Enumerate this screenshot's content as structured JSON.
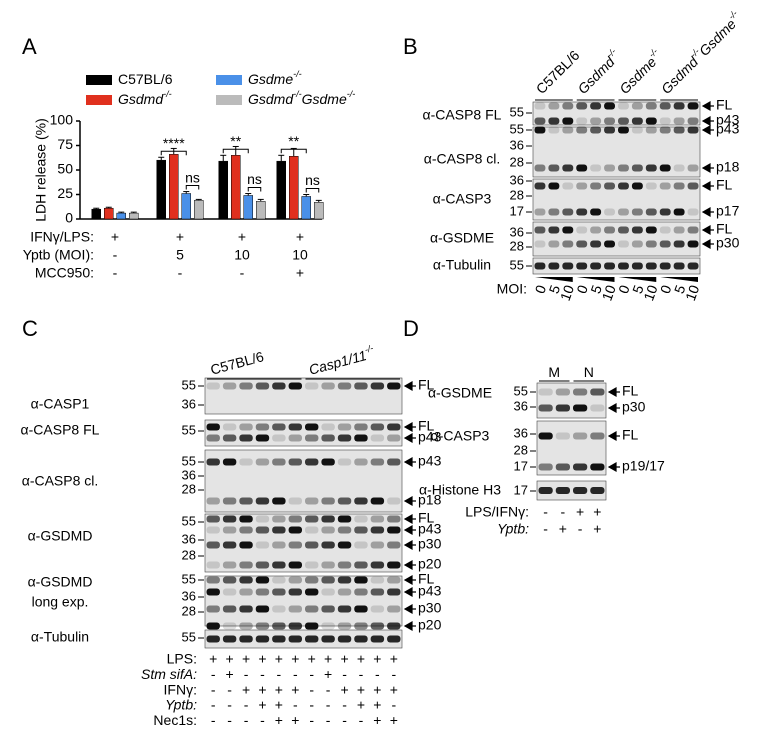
{
  "chart_data": {
    "type": "bar",
    "panel": "A",
    "ylabel": "LDH release (%)",
    "categories": [
      null,
      null,
      null,
      null
    ],
    "series": [
      {
        "name": "C57BL/6",
        "color": "#000000",
        "values": [
          10,
          60,
          59,
          59
        ],
        "errors": [
          1,
          3,
          6,
          6
        ]
      },
      {
        "name": "Gsdmd-/-",
        "color": "#e0301e",
        "values": [
          11,
          66,
          65,
          64
        ],
        "errors": [
          1,
          6,
          9,
          8
        ]
      },
      {
        "name": "Gsdme-/-",
        "color": "#4a90e8",
        "values": [
          6,
          26,
          24,
          23
        ],
        "errors": [
          1,
          2,
          2,
          2
        ]
      },
      {
        "name": "Gsdmd-/-Gsdme-/-",
        "color": "#bbbbbb",
        "values": [
          6,
          19,
          18,
          17
        ],
        "errors": [
          1,
          1,
          2,
          2
        ]
      }
    ],
    "ylim": [
      0,
      100
    ],
    "yticks": [
      0,
      25,
      50,
      75,
      100
    ],
    "grid": false,
    "significance": [
      [
        "****",
        "ns"
      ],
      [
        "**",
        "ns"
      ],
      [
        "**",
        "ns"
      ]
    ],
    "conditions": [
      {
        "label": "IFNγ/LPS:",
        "values": [
          "+",
          "+",
          "+",
          "+"
        ]
      },
      {
        "label": "Yptb (MOI):",
        "values": [
          "-",
          "5",
          "10",
          "10"
        ]
      },
      {
        "label": "MCC950:",
        "values": [
          "-",
          "-",
          "-",
          "+"
        ]
      }
    ]
  },
  "panel_b": {
    "label": "B",
    "groups": [
      "C57BL/6",
      "Gsdmd-/-",
      "Gsdme-/-",
      "Gsdmd-/-Gsdme-/-"
    ],
    "rows": [
      {
        "label": [
          "α-CASP8 FL"
        ],
        "markers": [
          55
        ],
        "bands": [
          "FL",
          "p43"
        ]
      },
      {
        "label": [
          "α-CASP8 cl."
        ],
        "markers": [
          55,
          36,
          28
        ],
        "bands": [
          "p43",
          "p18"
        ]
      },
      {
        "label": [
          "α-CASP3"
        ],
        "markers": [
          36,
          28,
          17
        ],
        "bands": [
          "FL",
          "p17"
        ]
      },
      {
        "label": [
          "α-GSDME"
        ],
        "markers": [
          36,
          28
        ],
        "bands": [
          "FL",
          "p30"
        ]
      },
      {
        "label": [
          "α-Tubulin"
        ],
        "markers": [
          55
        ],
        "bands": []
      }
    ],
    "lanes_label": "MOI:",
    "lanes": [
      0,
      5,
      10,
      0,
      5,
      10,
      0,
      5,
      10,
      0,
      5,
      10
    ]
  },
  "panel_c": {
    "label": "C",
    "groups": [
      "C57BL/6",
      "Casp1/11-/-"
    ],
    "rows": [
      {
        "label": [
          "α-CASP1"
        ],
        "markers": [
          55,
          36
        ],
        "bands": [
          "FL"
        ]
      },
      {
        "label": [
          "α-CASP8 FL"
        ],
        "markers": [
          55
        ],
        "bands": [
          "FL",
          "p43"
        ]
      },
      {
        "label": [
          "α-CASP8 cl."
        ],
        "markers": [
          55,
          36,
          28
        ],
        "bands": [
          "p43",
          "p18"
        ]
      },
      {
        "label": [
          "α-GSDMD"
        ],
        "markers": [
          55,
          36,
          28
        ],
        "bands": [
          "FL",
          "p43",
          "p30",
          "p20"
        ]
      },
      {
        "label": [
          "α-GSDMD",
          "long exp."
        ],
        "markers": [
          55,
          36,
          28
        ],
        "bands": [
          "FL",
          "p43",
          "p30",
          "p20"
        ]
      },
      {
        "label": [
          "α-Tubulin"
        ],
        "markers": [
          55
        ],
        "bands": []
      }
    ],
    "conditions": [
      {
        "label": "LPS:",
        "values": [
          "+",
          "+",
          "+",
          "+",
          "+",
          "+",
          "+",
          "+",
          "+",
          "+",
          "+",
          "+"
        ]
      },
      {
        "label": "Stm sifA:",
        "values": [
          "-",
          "+",
          "-",
          "-",
          "-",
          "-",
          "-",
          "+",
          "-",
          "-",
          "-",
          "-"
        ]
      },
      {
        "label": "IFNγ:",
        "values": [
          "-",
          "-",
          "+",
          "+",
          "+",
          "+",
          "-",
          "-",
          "+",
          "+",
          "+",
          "+"
        ]
      },
      {
        "label": "Yptb:",
        "values": [
          "-",
          "-",
          "-",
          "+",
          "+",
          "-",
          "-",
          "-",
          "-",
          "+",
          "+",
          "-"
        ]
      },
      {
        "label": "Nec1s:",
        "values": [
          "-",
          "-",
          "-",
          "-",
          "+",
          "+",
          "-",
          "-",
          "-",
          "-",
          "+",
          "+"
        ]
      }
    ]
  },
  "panel_d": {
    "label": "D",
    "groups": [
      "M",
      "N"
    ],
    "rows": [
      {
        "label": [
          "α-GSDME"
        ],
        "markers": [
          55,
          36
        ],
        "bands": [
          "FL",
          "p30"
        ]
      },
      {
        "label": [
          "α-CASP3"
        ],
        "markers": [
          36,
          28,
          17
        ],
        "bands": [
          "FL",
          "p19/17"
        ]
      },
      {
        "label": [
          "α-Histone H3"
        ],
        "markers": [
          17
        ],
        "bands": []
      }
    ],
    "conditions": [
      {
        "label": "LPS/IFNγ:",
        "values": [
          "-",
          "-",
          "+",
          "+"
        ]
      },
      {
        "label": "Yptb:",
        "values": [
          "-",
          "+",
          "-",
          "+"
        ]
      }
    ]
  }
}
